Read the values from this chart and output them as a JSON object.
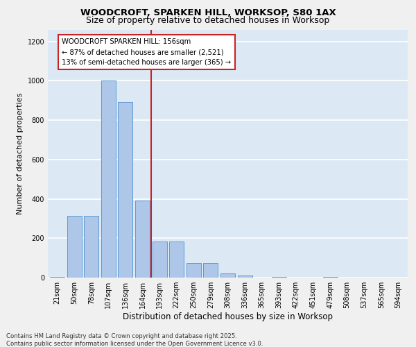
{
  "title1": "WOODCROFT, SPARKEN HILL, WORKSOP, S80 1AX",
  "title2": "Size of property relative to detached houses in Worksop",
  "xlabel": "Distribution of detached houses by size in Worksop",
  "ylabel": "Number of detached properties",
  "categories": [
    "21sqm",
    "50sqm",
    "78sqm",
    "107sqm",
    "136sqm",
    "164sqm",
    "193sqm",
    "222sqm",
    "250sqm",
    "279sqm",
    "308sqm",
    "336sqm",
    "365sqm",
    "393sqm",
    "422sqm",
    "451sqm",
    "479sqm",
    "508sqm",
    "537sqm",
    "565sqm",
    "594sqm"
  ],
  "values": [
    5,
    315,
    315,
    1000,
    890,
    390,
    185,
    185,
    75,
    75,
    20,
    10,
    0,
    5,
    0,
    0,
    5,
    0,
    0,
    0,
    0
  ],
  "bar_color": "#aec6e8",
  "bar_edge_color": "#5b9bd5",
  "bg_color": "#dce9f5",
  "grid_color": "#ffffff",
  "vline_x": 5.5,
  "vline_color": "#cc2222",
  "annotation_title": "WOODCROFT SPARKEN HILL: 156sqm",
  "annotation_line1": "← 87% of detached houses are smaller (2,521)",
  "annotation_line2": "13% of semi-detached houses are larger (365) →",
  "annotation_box_edgecolor": "#cc2222",
  "ylim": [
    0,
    1260
  ],
  "yticks": [
    0,
    200,
    400,
    600,
    800,
    1000,
    1200
  ],
  "fig_bg": "#f0f0f0",
  "footer1": "Contains HM Land Registry data © Crown copyright and database right 2025.",
  "footer2": "Contains public sector information licensed under the Open Government Licence v3.0."
}
